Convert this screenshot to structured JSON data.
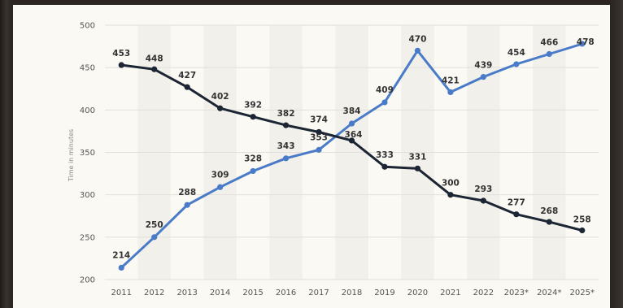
{
  "chart_data": {
    "type": "line",
    "title": "",
    "xlabel": "",
    "ylabel": "Time in minutes",
    "categories": [
      "2011",
      "2012",
      "2013",
      "2014",
      "2015",
      "2016",
      "2017",
      "2018",
      "2019",
      "2020",
      "2021",
      "2022",
      "2023*",
      "2024*",
      "2025*"
    ],
    "yticks": [
      "200",
      "250",
      "300",
      "350",
      "400",
      "450",
      "500"
    ],
    "ylim": [
      200,
      500
    ],
    "grid": true,
    "series": [
      {
        "key": "rising",
        "color": "#4a7bc8",
        "values": [
          214,
          250,
          288,
          309,
          328,
          343,
          353,
          384,
          409,
          470,
          421,
          439,
          454,
          466,
          478
        ],
        "labels": [
          "214",
          "250",
          "288",
          "309",
          "328",
          "343",
          "353",
          "384",
          "409",
          "470",
          "421",
          "439",
          "454",
          "466",
          "478"
        ]
      },
      {
        "key": "falling",
        "color": "#1b2533",
        "values": [
          453,
          448,
          427,
          402,
          392,
          382,
          374,
          364,
          333,
          331,
          300,
          293,
          277,
          268,
          258
        ],
        "labels": [
          "453",
          "448",
          "427",
          "402",
          "392",
          "382",
          "374",
          "364",
          "333",
          "331",
          "300",
          "293",
          "277",
          "268",
          "258"
        ]
      }
    ]
  }
}
